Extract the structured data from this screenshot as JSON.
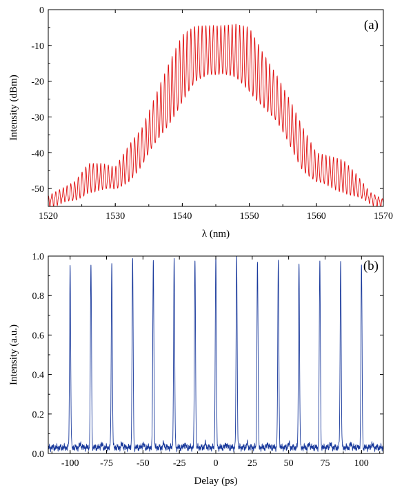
{
  "chart_data": [
    {
      "type": "line",
      "panel_label": "(a)",
      "xlabel": "λ (nm)",
      "ylabel": "Intensity (dBm)",
      "xlim": [
        1520,
        1570
      ],
      "ylim": [
        -55,
        0
      ],
      "x_ticks": [
        "1520",
        "1530",
        "1540",
        "1550",
        "1560",
        "1570"
      ],
      "y_ticks": [
        "0",
        "-10",
        "-20",
        "-30",
        "-40",
        "-50"
      ],
      "x_tick_values": [
        1520,
        1530,
        1540,
        1550,
        1560,
        1570
      ],
      "y_tick_values": [
        0,
        -10,
        -20,
        -30,
        -40,
        -50
      ],
      "line_color": "#e01010",
      "grid": false,
      "mode_spacing_nm": 0.56,
      "envelope": {
        "x": [
          1520,
          1522,
          1524,
          1526,
          1528,
          1530,
          1532,
          1534,
          1536,
          1538,
          1540,
          1542,
          1544,
          1546,
          1548,
          1550,
          1552,
          1554,
          1556,
          1558,
          1560,
          1562,
          1564,
          1566,
          1568,
          1570
        ],
        "peak": [
          -52,
          -50,
          -48,
          -43,
          -43,
          -44,
          -38,
          -33,
          -24,
          -15,
          -7,
          -4.5,
          -4.5,
          -4.5,
          -4,
          -5,
          -12,
          -18,
          -25,
          -33,
          -40,
          -41,
          -42,
          -46,
          -51,
          -53
        ],
        "trough": [
          -54.5,
          -54,
          -53,
          -50,
          -50,
          -50,
          -47,
          -43,
          -37,
          -31,
          -25,
          -20,
          -17,
          -17,
          -19,
          -22,
          -26,
          -31,
          -37,
          -44,
          -48,
          -49,
          -50,
          -52,
          -54,
          -55
        ]
      }
    },
    {
      "type": "line",
      "panel_label": "(b)",
      "xlabel": "Delay (ps)",
      "ylabel": "Intensity (a.u.)",
      "xlim": [
        -115,
        115
      ],
      "ylim": [
        0,
        1.0
      ],
      "x_ticks": [
        "-100",
        "-75",
        "-50",
        "-25",
        "0",
        "25",
        "50",
        "75",
        "100"
      ],
      "y_ticks": [
        "0.0",
        "0.2",
        "0.4",
        "0.6",
        "0.8",
        "1.0"
      ],
      "x_tick_values": [
        -100,
        -75,
        -50,
        -25,
        0,
        25,
        50,
        75,
        100
      ],
      "y_tick_values": [
        0,
        0.2,
        0.4,
        0.6,
        0.8,
        1.0
      ],
      "line_color": "#1a3a9c",
      "grid": false,
      "peaks": {
        "delay": [
          -100,
          -85.7,
          -71.4,
          -57.1,
          -42.9,
          -28.6,
          -14.3,
          0,
          14.3,
          28.6,
          42.9,
          57.1,
          71.4,
          85.7,
          100
        ],
        "intensity": [
          0.95,
          0.96,
          0.97,
          0.98,
          0.98,
          0.98,
          0.99,
          1.0,
          0.99,
          0.98,
          0.98,
          0.97,
          0.97,
          0.97,
          0.96
        ]
      },
      "baseline": 0.03
    }
  ]
}
